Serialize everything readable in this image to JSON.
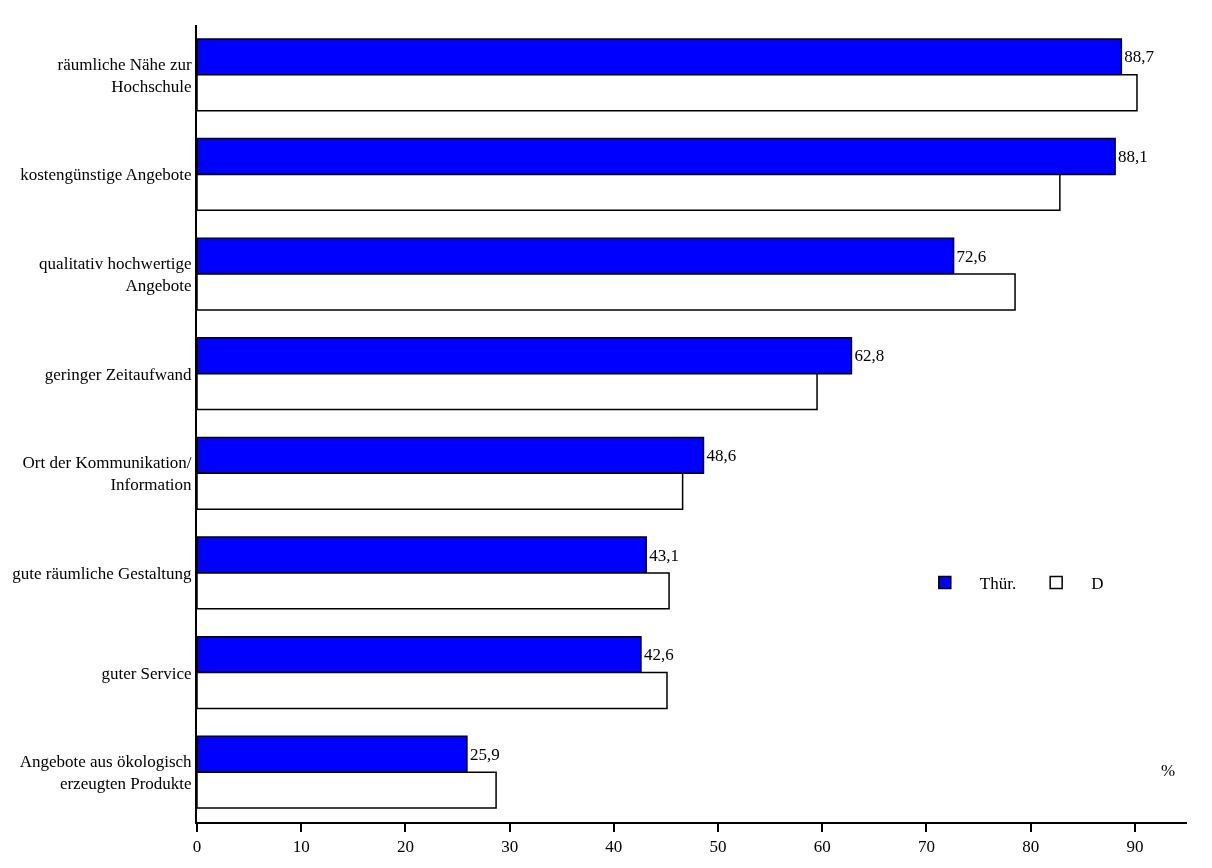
{
  "chart_data": {
    "type": "bar",
    "orientation": "horizontal",
    "categories": [
      "räumliche Nähe zur\nHochschule",
      "kostengünstige Angebote",
      "qualitativ hochwertige\nAngebote",
      "geringer Zeitaufwand",
      "Ort der Kommunikation/\nInformation",
      "gute räumliche Gestaltung",
      "guter Service",
      "Angebote aus ökologisch\nerzeugten Produkte"
    ],
    "series": [
      {
        "name": "Thür.",
        "color": "#0000ff",
        "values": [
          88.7,
          88.1,
          72.6,
          62.8,
          48.6,
          43.1,
          42.6,
          25.9
        ],
        "value_labels": [
          "88,7",
          "88,1",
          "72,6",
          "62,8",
          "48,6",
          "43,1",
          "42,6",
          "25,9"
        ]
      },
      {
        "name": "D",
        "color": "#ffffff",
        "values": [
          90.2,
          82.8,
          78.5,
          59.5,
          46.6,
          45.3,
          45.1,
          28.7
        ]
      }
    ],
    "xlim": [
      0,
      95
    ],
    "xticks": [
      0,
      10,
      20,
      30,
      40,
      50,
      60,
      70,
      80,
      90
    ],
    "annotations": [
      "%"
    ],
    "legend": "bottom right"
  }
}
